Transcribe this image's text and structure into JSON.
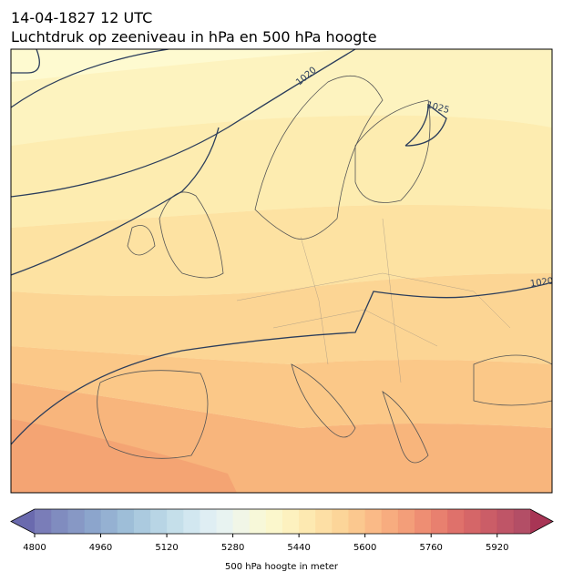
{
  "header": {
    "title": "14-04-1827 12 UTC",
    "subtitle": "Luchtdruk op zeeniveau in hPa en 500 hPa hoogte"
  },
  "map": {
    "isobar_labels": [
      "1020",
      "1025",
      "1020"
    ]
  },
  "chart_data": {
    "type": "colorbar",
    "label": "500 hPa hoogte in meter",
    "xlim": [
      4800,
      6000
    ],
    "xticks": [
      4800,
      4960,
      5120,
      5280,
      5440,
      5600,
      5760,
      5920
    ],
    "bins": [
      4800,
      4840,
      4880,
      4920,
      4960,
      5000,
      5040,
      5080,
      5120,
      5160,
      5200,
      5240,
      5280,
      5320,
      5360,
      5400,
      5440,
      5480,
      5520,
      5560,
      5600,
      5640,
      5680,
      5720,
      5760,
      5800,
      5840,
      5880,
      5920,
      5960,
      6000
    ],
    "colors": [
      "#6b6fb0",
      "#727fb8",
      "#7a8dbf",
      "#809bc6",
      "#89a9cd",
      "#94b7d4",
      "#a2c4db",
      "#b0d0e2",
      "#bfdbe8",
      "#cde4ee",
      "#dbecf2",
      "#e6f2f0",
      "#eff5e4",
      "#f6f7d5",
      "#fbf6c6",
      "#fdf0b8",
      "#fde7a9",
      "#fddc9b",
      "#fcd08e",
      "#fbc283",
      "#f9b37a",
      "#f6a371",
      "#f2936a",
      "#ec8264",
      "#e5725f",
      "#dc625b",
      "#d05558",
      "#c54b57",
      "#b84256",
      "#ab3b55"
    ],
    "under_color": "#6a6aae",
    "over_color": "#a83555"
  }
}
